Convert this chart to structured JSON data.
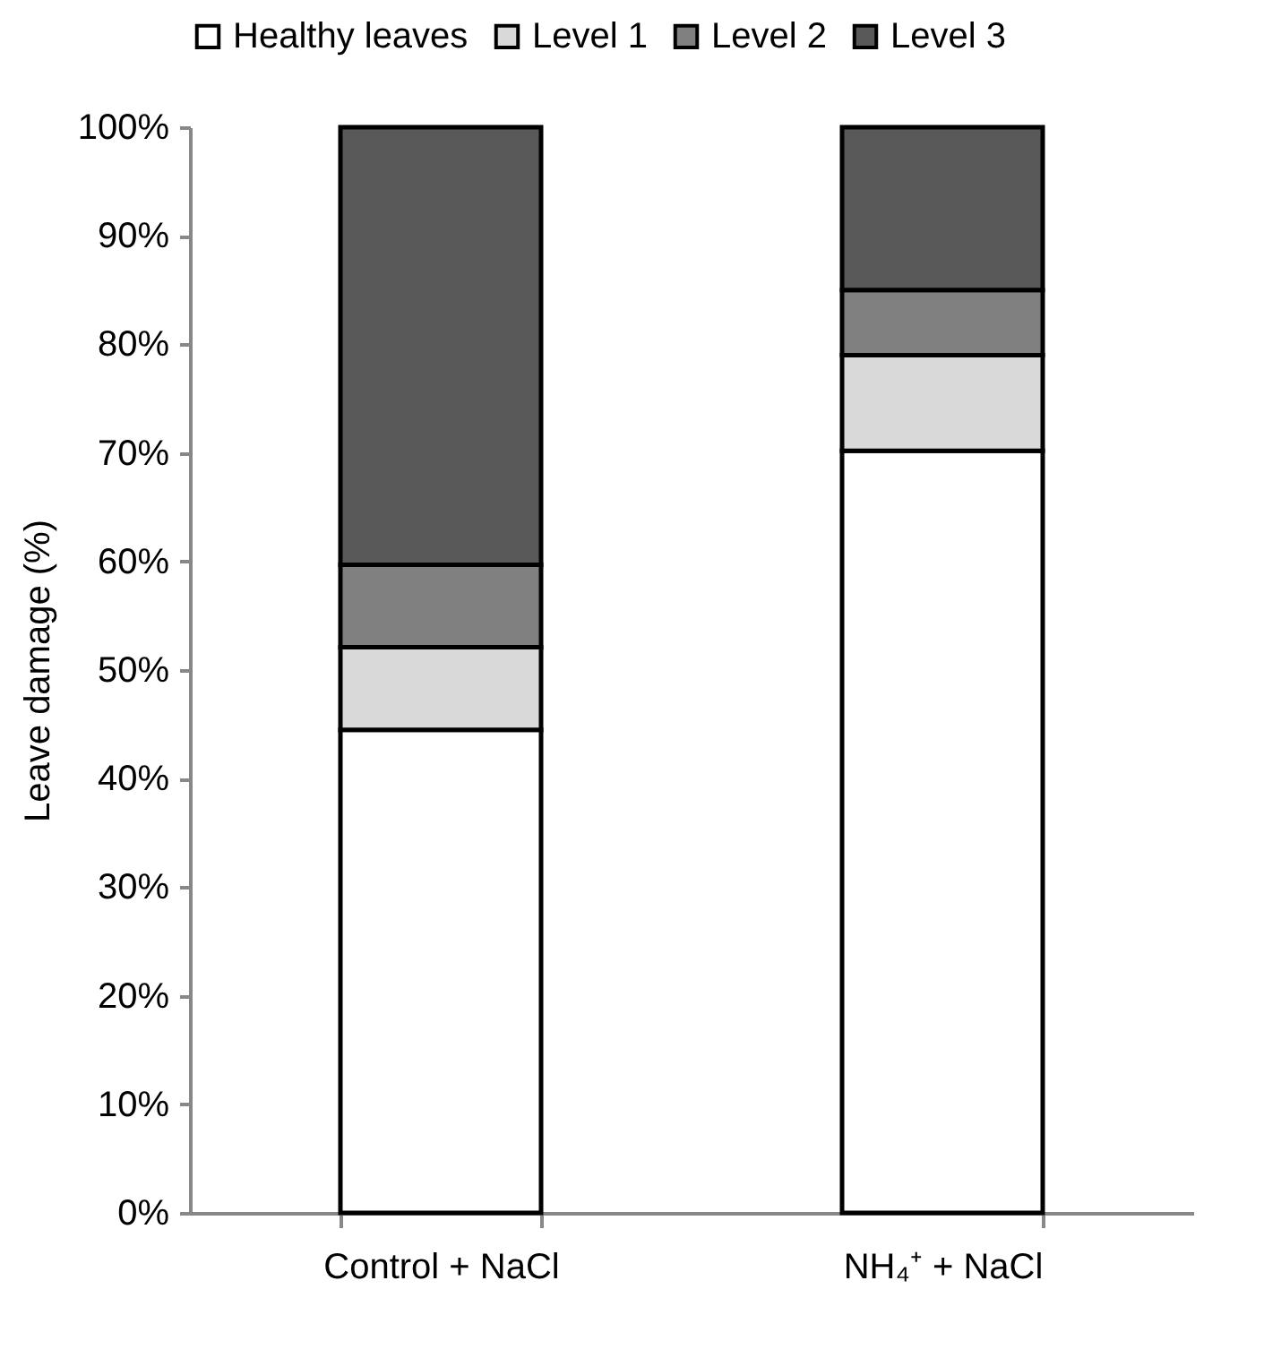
{
  "chart_data": {
    "type": "bar",
    "stacked": true,
    "ylabel": "Leave damage (%)",
    "categories": [
      "Control + NaCl",
      "NH₄⁺ + NaCl"
    ],
    "series": [
      {
        "name": "Healthy leaves",
        "color": "#ffffff",
        "values": [
          44.5,
          70.2
        ]
      },
      {
        "name": "Level 1",
        "color": "#d9d9d9",
        "values": [
          7.6,
          8.8
        ]
      },
      {
        "name": "Level 2",
        "color": "#808080",
        "values": [
          7.6,
          6.0
        ]
      },
      {
        "name": "Level 3",
        "color": "#595959",
        "values": [
          40.3,
          15.0
        ]
      }
    ],
    "ylim": [
      0,
      100
    ],
    "yticks": [
      {
        "value": 0,
        "label": "0%"
      },
      {
        "value": 10,
        "label": "10%"
      },
      {
        "value": 20,
        "label": "20%"
      },
      {
        "value": 30,
        "label": "30%"
      },
      {
        "value": 40,
        "label": "40%"
      },
      {
        "value": 50,
        "label": "50%"
      },
      {
        "value": 60,
        "label": "60%"
      },
      {
        "value": 70,
        "label": "70%"
      },
      {
        "value": 80,
        "label": "80%"
      },
      {
        "value": 90,
        "label": "90%"
      },
      {
        "value": 100,
        "label": "100%"
      }
    ],
    "grid": false,
    "legend": "top"
  }
}
